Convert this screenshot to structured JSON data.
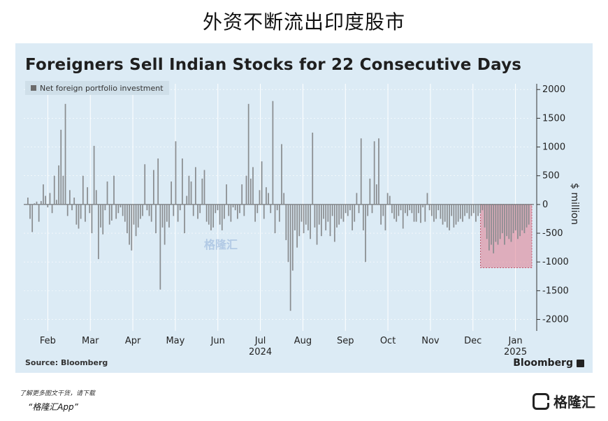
{
  "headline": "外资不断流出印度股市",
  "footer": {
    "note1": "了解更多图文干货，请下载",
    "note2": "“格隆汇App”",
    "logo_text": "格隆汇"
  },
  "watermark": "格隆汇",
  "chart_data": {
    "type": "bar",
    "title": "Foreigners Sell Indian Stocks for 22 Consecutive Days",
    "legend": [
      "Net foreign portfolio investment"
    ],
    "ylabel": "$ million",
    "ylim": [
      -2200,
      2100
    ],
    "yticks": [
      2000,
      1500,
      1000,
      500,
      0,
      -500,
      -1000,
      -1500,
      -2000
    ],
    "ytick_labels": [
      "2000",
      "1500",
      "1000",
      "500",
      "0",
      "-500",
      "-1000",
      "-1500",
      "-2000"
    ],
    "xtick_labels": [
      "Feb",
      "Mar",
      "Apr",
      "May",
      "Jun",
      "Jul",
      "Aug",
      "Sep",
      "Oct",
      "Nov",
      "Dec",
      "Jan"
    ],
    "year_labels": [
      "2024",
      "2025"
    ],
    "source": "Source: Bloomberg",
    "brand": "Bloomberg",
    "highlight": {
      "y_top": 0,
      "y_bottom": -1100,
      "color": "#e07a8d"
    },
    "series": [
      {
        "values": [
          120,
          -250,
          -480,
          20,
          50,
          -300,
          60,
          350,
          150,
          -50,
          200,
          -150,
          500,
          80,
          680,
          1300,
          500,
          1750,
          -200,
          250,
          -100,
          120,
          -350,
          -420,
          -250,
          500,
          -300,
          300,
          -150,
          -500,
          1020,
          250,
          -950,
          -400,
          -520,
          -100,
          400,
          -350,
          -280,
          500,
          -250,
          -150,
          -50,
          -200,
          -300,
          -500,
          -700,
          -800,
          -350,
          -550,
          -400,
          -250,
          -200,
          700,
          -100,
          -200,
          -300,
          600,
          -500,
          800,
          -1480,
          -400,
          -700,
          -300,
          -400,
          400,
          -200,
          1100,
          -300,
          -100,
          800,
          -500,
          150,
          500,
          400,
          -200,
          650,
          -250,
          -150,
          450,
          600,
          -300,
          -350,
          -450,
          -400,
          -150,
          -100,
          -350,
          -450,
          -250,
          350,
          -200,
          -300,
          -50,
          -100,
          -250,
          -150,
          350,
          -200,
          500,
          1750,
          450,
          650,
          -300,
          -150,
          250,
          750,
          -250,
          300,
          200,
          -150,
          1800,
          -500,
          -100,
          -300,
          1050,
          200,
          -620,
          -1000,
          -1850,
          -1150,
          -450,
          -750,
          -550,
          -300,
          -500,
          -350,
          -450,
          -600,
          1250,
          -400,
          -700,
          -350,
          -550,
          -250,
          -450,
          -300,
          -550,
          -200,
          -650,
          -400,
          -350,
          -250,
          -300,
          -150,
          -200,
          -100,
          -450,
          -300,
          200,
          -150,
          1150,
          -450,
          -1000,
          -200,
          450,
          -150,
          1100,
          350,
          1150,
          -350,
          -200,
          -450,
          200,
          150,
          -150,
          -250,
          -300,
          -200,
          -100,
          -420,
          -150,
          -200,
          -100,
          -150,
          -300,
          -300,
          -150,
          -320,
          -50,
          -300,
          200,
          -100,
          -200,
          -300,
          -250,
          -100,
          -250,
          -350,
          -300,
          -400,
          -450,
          -200,
          -400,
          -350,
          -300,
          -250,
          -300,
          -200,
          -150,
          -250,
          -200,
          -150,
          -300,
          -200,
          -150,
          -100,
          -400,
          -600,
          -800,
          -700,
          -850,
          -650,
          -700,
          -600,
          -500,
          -700,
          -550,
          -600,
          -650,
          -500,
          -450,
          -600,
          -550,
          -450,
          -500,
          -400,
          -350
        ]
      }
    ]
  }
}
